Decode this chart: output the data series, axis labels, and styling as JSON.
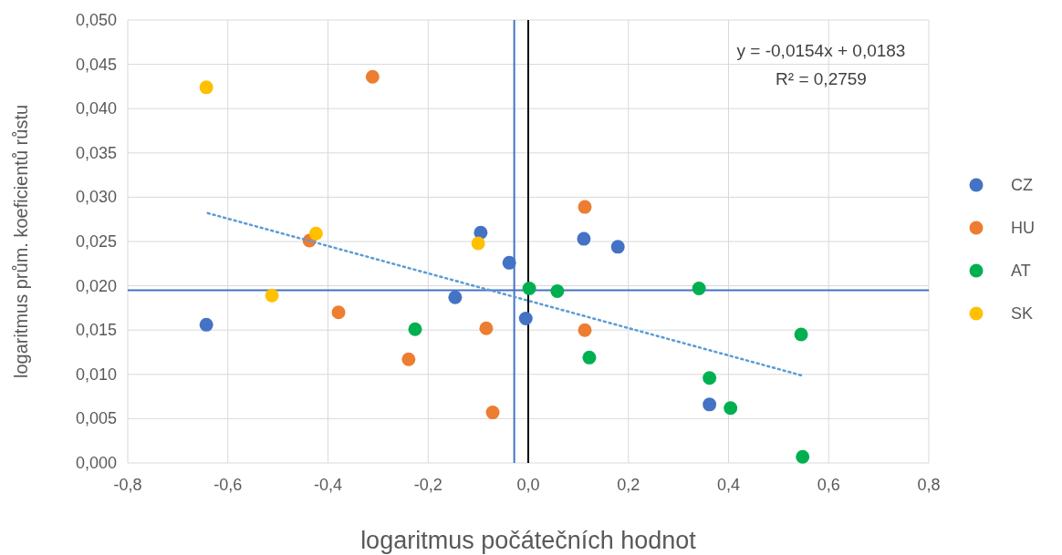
{
  "chart_data": {
    "type": "scatter",
    "xlabel": "logaritmus počátečních hodnot",
    "ylabel": "logaritmus prům. koeficientů růstu",
    "xlim": [
      -0.8,
      0.8
    ],
    "ylim": [
      0,
      0.05
    ],
    "xticks": [
      {
        "value": -0.8,
        "label": "-0,8"
      },
      {
        "value": -0.6,
        "label": "-0,6"
      },
      {
        "value": -0.4,
        "label": "-0,4"
      },
      {
        "value": -0.2,
        "label": "-0,2"
      },
      {
        "value": 0,
        "label": "0,0"
      },
      {
        "value": 0.2,
        "label": "0,2"
      },
      {
        "value": 0.4,
        "label": "0,4"
      },
      {
        "value": 0.6,
        "label": "0,6"
      },
      {
        "value": 0.8,
        "label": "0,8"
      }
    ],
    "yticks": [
      {
        "value": 0,
        "label": "0,000"
      },
      {
        "value": 0.005,
        "label": "0,005"
      },
      {
        "value": 0.01,
        "label": "0,010"
      },
      {
        "value": 0.015,
        "label": "0,015"
      },
      {
        "value": 0.02,
        "label": "0,020"
      },
      {
        "value": 0.025,
        "label": "0,025"
      },
      {
        "value": 0.03,
        "label": "0,030"
      },
      {
        "value": 0.035,
        "label": "0,035"
      },
      {
        "value": 0.04,
        "label": "0,040"
      },
      {
        "value": 0.045,
        "label": "0,045"
      },
      {
        "value": 0.05,
        "label": "0,050"
      }
    ],
    "grid": true,
    "legend": "right",
    "marker": "circle",
    "series": [
      {
        "name": "CZ",
        "color": "#4472c4",
        "x": [
          -0.643,
          -0.146,
          -0.095,
          -0.038,
          -0.005,
          0.111,
          0.179,
          0.362
        ],
        "values": [
          0.0156,
          0.0187,
          0.026,
          0.0226,
          0.0163,
          0.0253,
          0.0244,
          0.0066
        ]
      },
      {
        "name": "HU",
        "color": "#ed7d31",
        "x": [
          -0.311,
          -0.437,
          -0.379,
          -0.239,
          -0.084,
          -0.071,
          0.113,
          0.113
        ],
        "values": [
          0.0436,
          0.0251,
          0.017,
          0.0117,
          0.0152,
          0.0057,
          0.0289,
          0.015
        ]
      },
      {
        "name": "AT",
        "color": "#00b050",
        "x": [
          -0.226,
          0.002,
          0.058,
          0.341,
          0.122,
          0.362,
          0.404,
          0.545,
          0.548
        ],
        "values": [
          0.0151,
          0.0197,
          0.0194,
          0.0197,
          0.0119,
          0.0096,
          0.0062,
          0.0145,
          0.0007
        ]
      },
      {
        "name": "SK",
        "color": "#ffc000",
        "x": [
          -0.643,
          -0.424,
          -0.512,
          -0.1
        ],
        "values": [
          0.0424,
          0.0259,
          0.0189,
          0.0248
        ]
      },
      {
        "type": "line",
        "color": "#5b9bd5",
        "line_style": "dotted",
        "marker": "none",
        "x": [
          -0.64,
          0.545
        ],
        "values": [
          0.0282,
          0.0099
        ]
      }
    ],
    "ref_lines": [
      {
        "axis": "x",
        "value": -0.028,
        "color": "#4472c4"
      },
      {
        "axis": "y",
        "value": 0.0195,
        "color": "#4472c4"
      },
      {
        "axis": "x",
        "value": 0,
        "color": "#000000"
      }
    ],
    "annotations": [
      "y = -0,0154x + 0,0183",
      "R² = 0,2759"
    ]
  }
}
